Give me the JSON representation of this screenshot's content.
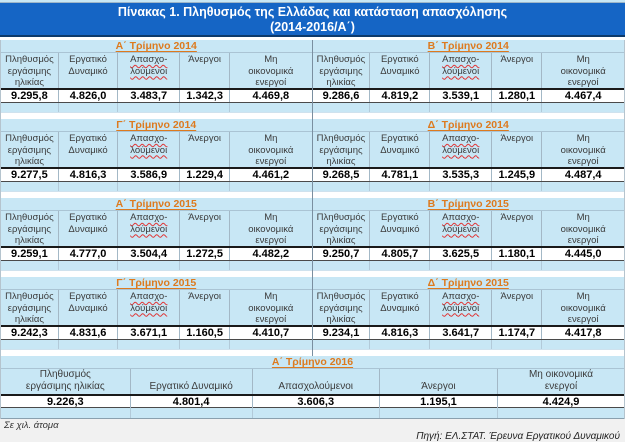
{
  "title": {
    "line1": "Πίνακας 1. Πληθυσμός της Ελλάδας και κατάσταση απασχόλησης",
    "line2": "(2014-2016/Α΄)"
  },
  "pair_header_columns": [
    {
      "lines": [
        "Πληθυσμός",
        "εργάσιμης",
        "ηλικίας"
      ],
      "wavy": false
    },
    {
      "lines": [
        "Εργατικό",
        "Δυναμικό"
      ],
      "wavy": false
    },
    {
      "lines": [
        "Απασχο-",
        "λούμενοι"
      ],
      "wavy": true
    },
    {
      "lines": [
        "Άνεργοι"
      ],
      "wavy": false
    },
    {
      "lines": [
        "Μη",
        "οικονομικά",
        "ενεργοί"
      ],
      "wavy": false
    }
  ],
  "blocks": [
    {
      "halves": [
        {
          "quarter": "Α΄ Τρίμηνο 2014",
          "values": [
            "9.295,8",
            "4.826,0",
            "3.483,7",
            "1.342,3",
            "4.469,8"
          ]
        },
        {
          "quarter": "Β΄ Τρίμηνο 2014",
          "values": [
            "9.286,6",
            "4.819,2",
            "3.539,1",
            "1.280,1",
            "4.467,4"
          ]
        }
      ]
    },
    {
      "halves": [
        {
          "quarter": "Γ΄ Τρίμηνο 2014",
          "values": [
            "9.277,5",
            "4.816,3",
            "3.586,9",
            "1.229,4",
            "4.461,2"
          ]
        },
        {
          "quarter": "Δ΄ Τρίμηνο 2014",
          "values": [
            "9.268,5",
            "4.781,1",
            "3.535,3",
            "1.245,9",
            "4.487,4"
          ]
        }
      ]
    },
    {
      "halves": [
        {
          "quarter": "Α΄ Τρίμηνο 2015",
          "values": [
            "9.259,1",
            "4.777,0",
            "3.504,4",
            "1.272,5",
            "4.482,2"
          ]
        },
        {
          "quarter": "Β΄ Τρίμηνο 2015",
          "values": [
            "9.250,7",
            "4.805,7",
            "3.625,5",
            "1.180,1",
            "4.445,0"
          ]
        }
      ]
    },
    {
      "halves": [
        {
          "quarter": "Γ΄ Τρίμηνο 2015",
          "values": [
            "9.242,3",
            "4.831,6",
            "3.671,1",
            "1.160,5",
            "4.410,7"
          ]
        },
        {
          "quarter": "Δ΄ Τρίμηνο 2015",
          "values": [
            "9.234,1",
            "4.816,3",
            "3.641,7",
            "1.174,7",
            "4.417,8"
          ]
        }
      ]
    }
  ],
  "block2016": {
    "quarter": "Α΄ Τρίμηνο 2016",
    "columns": [
      {
        "lines": [
          "Πληθυσμός",
          "εργάσιμης ηλικίας"
        ],
        "wavy": false
      },
      {
        "lines": [
          "Εργατικό Δυναμικό"
        ],
        "wavy": false
      },
      {
        "lines": [
          "Απασχολούμενοι"
        ],
        "wavy": false
      },
      {
        "lines": [
          "Άνεργοι"
        ],
        "wavy": false
      },
      {
        "lines": [
          "Μη οικονομικά",
          "ενεργοί"
        ],
        "wavy": false
      }
    ],
    "values": [
      "9.226,3",
      "4.801,4",
      "3.606,3",
      "1.195,1",
      "4.424,9"
    ]
  },
  "footnote": "Σε χιλ. άτομα",
  "source": "Πηγή: ΕΛ.ΣΤΑΤ. Έρευνα Εργατικού Δυναμικού",
  "colors": {
    "title_bar": "#1565c5",
    "cell_blue": "#c8e7f5",
    "quarter_orange": "#dd7a1e",
    "wavy_red": "#e03535",
    "grid_line": "#a3b8c6",
    "footer_bg": "#f1f1f1"
  }
}
